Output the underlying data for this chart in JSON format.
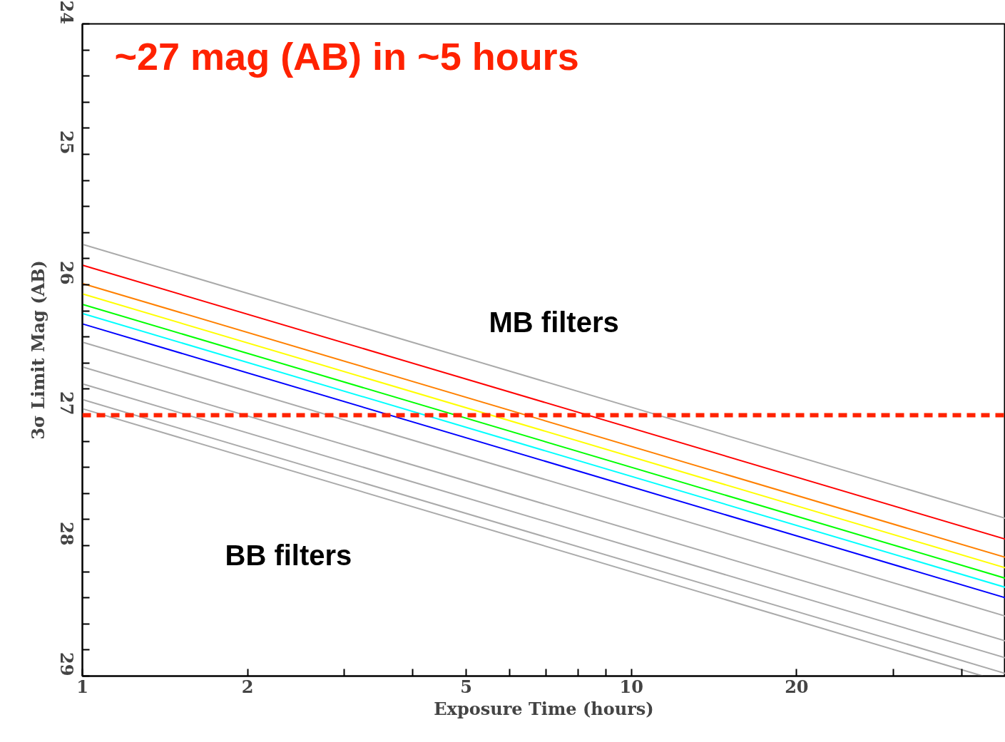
{
  "chart_data": {
    "type": "line",
    "xlabel": "Exposure Time (hours)",
    "ylabel": "3σ Limit Mag (AB)",
    "log": "x",
    "xlim": [
      1,
      48
    ],
    "ylim": [
      29,
      24
    ],
    "xticks": [
      1,
      2,
      5,
      10,
      20,
      {
        "value": 3,
        "label": null
      },
      {
        "value": 4,
        "label": null
      },
      {
        "value": 6,
        "label": null
      },
      {
        "value": 7,
        "label": null
      },
      {
        "value": 8,
        "label": null
      },
      {
        "value": 9,
        "label": null
      },
      {
        "value": 30,
        "label": null
      },
      {
        "value": 40,
        "label": null
      }
    ],
    "yticks": [
      24,
      25,
      26,
      27,
      28,
      29,
      {
        "value": 24.2,
        "label": null
      },
      {
        "value": 24.4,
        "label": null
      },
      {
        "value": 24.6,
        "label": null
      },
      {
        "value": 24.8,
        "label": null
      },
      {
        "value": 25.2,
        "label": null
      },
      {
        "value": 25.4,
        "label": null
      },
      {
        "value": 25.6,
        "label": null
      },
      {
        "value": 25.8,
        "label": null
      },
      {
        "value": 26.2,
        "label": null
      },
      {
        "value": 26.4,
        "label": null
      },
      {
        "value": 26.6,
        "label": null
      },
      {
        "value": 26.8,
        "label": null
      },
      {
        "value": 27.2,
        "label": null
      },
      {
        "value": 27.4,
        "label": null
      },
      {
        "value": 27.6,
        "label": null
      },
      {
        "value": 27.8,
        "label": null
      },
      {
        "value": 28.2,
        "label": null
      },
      {
        "value": 28.4,
        "label": null
      },
      {
        "value": 28.6,
        "label": null
      },
      {
        "value": 28.8,
        "label": null
      }
    ],
    "series": [
      {
        "color": "#aaaaaa",
        "x": [
          1,
          48
        ],
        "values": [
          25.69,
          27.79
        ]
      },
      {
        "color": "#ff0000",
        "x": [
          1,
          48
        ],
        "values": [
          25.85,
          27.95
        ]
      },
      {
        "color": "#ff8000",
        "x": [
          1,
          48
        ],
        "values": [
          25.99,
          28.09
        ]
      },
      {
        "color": "#ffff00",
        "x": [
          1,
          48
        ],
        "values": [
          26.07,
          28.17
        ]
      },
      {
        "color": "#00ff00",
        "x": [
          1,
          48
        ],
        "values": [
          26.15,
          28.25
        ]
      },
      {
        "color": "#00ffff",
        "x": [
          1,
          48
        ],
        "values": [
          26.22,
          28.32
        ]
      },
      {
        "color": "#0000ff",
        "x": [
          1,
          48
        ],
        "values": [
          26.3,
          28.4
        ]
      },
      {
        "color": "#aaaaaa",
        "x": [
          1,
          48
        ],
        "values": [
          26.44,
          28.54
        ]
      },
      {
        "color": "#aaaaaa",
        "x": [
          1,
          48
        ],
        "values": [
          26.63,
          28.73
        ]
      },
      {
        "color": "#aaaaaa",
        "x": [
          1,
          48
        ],
        "values": [
          26.76,
          28.86
        ]
      },
      {
        "color": "#aaaaaa",
        "x": [
          1,
          48
        ],
        "values": [
          26.88,
          28.98
        ]
      },
      {
        "color": "#aaaaaa",
        "x": [
          1,
          43.7
        ],
        "values": [
          26.95,
          29.0
        ]
      }
    ],
    "ref_lines": [
      {
        "axis": "y",
        "value": 27,
        "color": "#ff2200",
        "line_style": "dashed"
      }
    ],
    "annotations": [
      "~27 mag (AB) in ~5 hours",
      "MB filters",
      "BB filters"
    ]
  }
}
